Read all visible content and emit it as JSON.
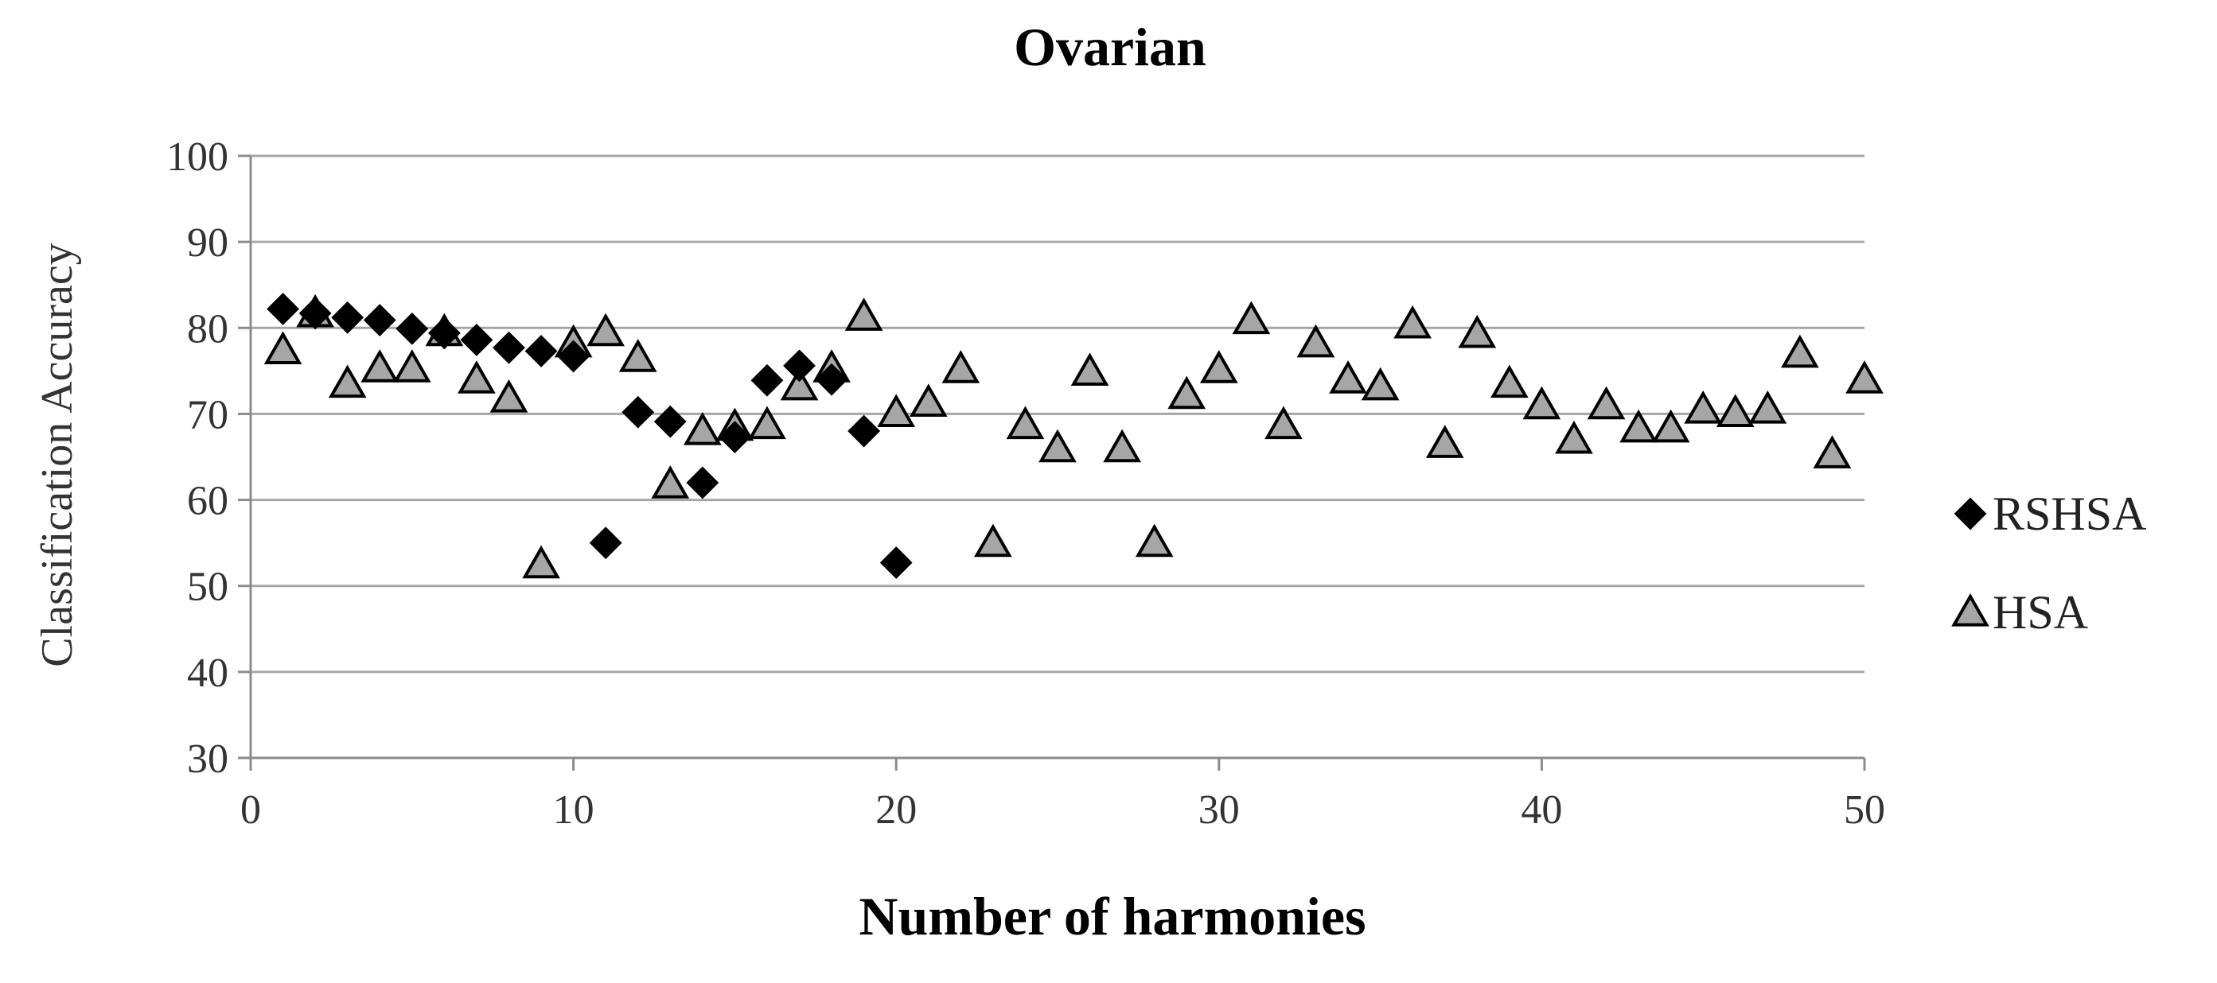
{
  "chart_data": {
    "type": "scatter",
    "title": "Ovarian",
    "xlabel": "Number of harmonies",
    "ylabel": "Classification Accuracy",
    "xlim": [
      0,
      50
    ],
    "ylim": [
      30,
      100
    ],
    "xticks": [
      0,
      10,
      20,
      30,
      40,
      50
    ],
    "yticks": [
      30,
      40,
      50,
      60,
      70,
      80,
      90,
      100
    ],
    "grid": "horizontal",
    "legend": "right",
    "series": [
      {
        "name": "RSHSA",
        "marker": "diamond",
        "color": "#000000",
        "x": [
          1,
          2,
          3,
          4,
          5,
          6,
          7,
          8,
          9,
          10,
          11,
          12,
          13,
          14,
          15,
          16,
          17,
          18,
          19,
          20
        ],
        "y": [
          82.2,
          81.7,
          81.2,
          80.9,
          79.9,
          79.4,
          78.6,
          77.7,
          77.3,
          76.7,
          55,
          70.2,
          69.1,
          62,
          67.3,
          73.9,
          75.6,
          74,
          68,
          52.7
        ]
      },
      {
        "name": "HSA",
        "marker": "triangle",
        "color": "#a6a6a6",
        "x": [
          1,
          2,
          3,
          4,
          5,
          6,
          7,
          8,
          9,
          10,
          11,
          12,
          13,
          14,
          15,
          16,
          17,
          18,
          19,
          20,
          21,
          22,
          23,
          24,
          25,
          26,
          27,
          28,
          29,
          30,
          31,
          32,
          33,
          34,
          35,
          36,
          37,
          38,
          39,
          40,
          41,
          42,
          43,
          44,
          45,
          46,
          47,
          48,
          49,
          50
        ],
        "y": [
          77.4,
          81.7,
          73.5,
          75.3,
          75.3,
          79.5,
          74,
          71.8,
          52.5,
          78.2,
          79.5,
          76.5,
          61.8,
          68,
          68.5,
          68.7,
          73.2,
          75.3,
          81.3,
          70.1,
          71.3,
          75.2,
          55,
          68.7,
          66,
          74.9,
          66,
          55,
          72.2,
          75.2,
          80.9,
          68.7,
          78.2,
          74,
          73.2,
          80.4,
          66.5,
          79.3,
          73.5,
          71,
          67,
          71,
          68.3,
          68.3,
          70.5,
          70.1,
          70.5,
          77,
          65.3,
          74
        ]
      }
    ]
  }
}
